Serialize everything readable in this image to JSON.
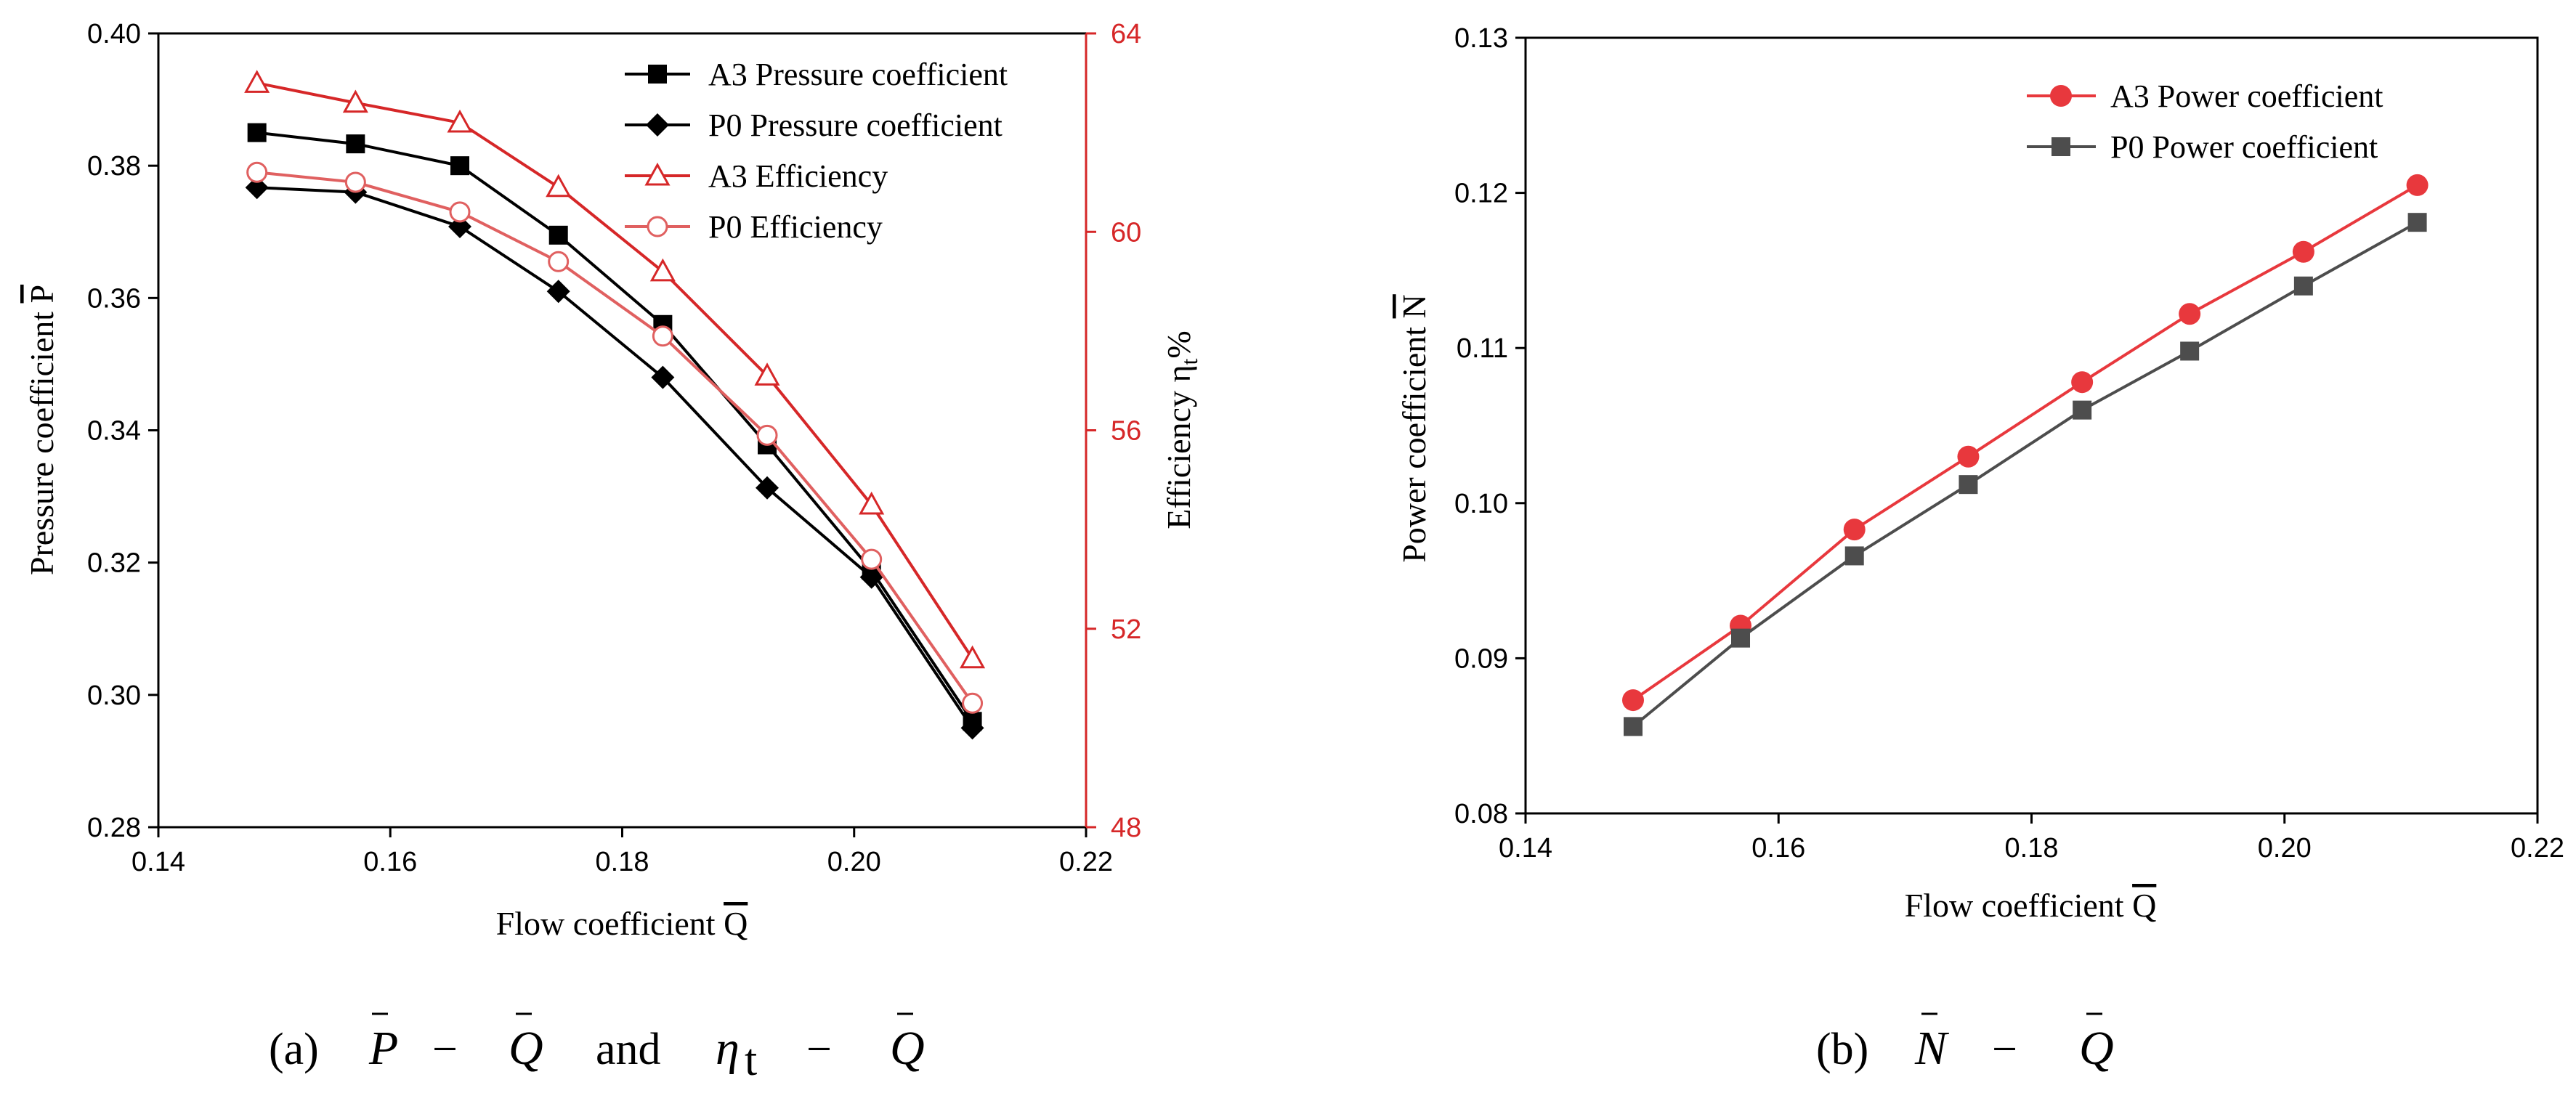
{
  "chart_data": [
    {
      "type": "line",
      "panel": "a",
      "caption": {
        "label": "(a)",
        "text": "P − Q and η",
        "terms": [
          "P",
          "−",
          "Q",
          "and",
          "η",
          "t",
          "−",
          "Q"
        ]
      },
      "xlabel": "Flow coefficient Q",
      "xlabel_text": "Flow coefficient ",
      "xlabel_var": "Q",
      "ylabel": "Pressure coefficient P",
      "ylabel_text": "Pressure coefficient ",
      "ylabel_var": "P",
      "y2label": "Efficiency ηt%",
      "y2label_text": "Efficiency η",
      "y2label_sub": "t",
      "y2label_suffix": "%",
      "xlim": [
        0.14,
        0.22
      ],
      "ylim": [
        0.28,
        0.4
      ],
      "y2lim": [
        48,
        64
      ],
      "xticks": [
        "0.14",
        "0.16",
        "0.18",
        "0.20",
        "0.22"
      ],
      "yticks": [
        "0.28",
        "0.30",
        "0.32",
        "0.34",
        "0.36",
        "0.38",
        "0.40"
      ],
      "y2ticks": [
        "48",
        "52",
        "56",
        "60",
        "64"
      ],
      "legend_position": "top-right",
      "x": [
        0.1485,
        0.157,
        0.166,
        0.1745,
        0.1835,
        0.1925,
        0.2015,
        0.2102
      ],
      "series": [
        {
          "name": "A3 Pressure coefficient",
          "axis": "left",
          "marker": "square",
          "color": "#000000",
          "values": [
            0.385,
            0.3833,
            0.38,
            0.3695,
            0.356,
            0.3378,
            0.3188,
            0.296
          ]
        },
        {
          "name": "P0 Pressure coefficient",
          "axis": "left",
          "marker": "diamond",
          "color": "#000000",
          "values": [
            0.3767,
            0.376,
            0.3708,
            0.361,
            0.348,
            0.3313,
            0.3178,
            0.295
          ]
        },
        {
          "name": "A3 Efficiency",
          "axis": "right",
          "marker": "triangle-open",
          "color": "#d62728",
          "values": [
            63.0,
            62.6,
            62.2,
            60.9,
            59.2,
            57.1,
            54.5,
            51.4
          ]
        },
        {
          "name": "P0 Efficiency",
          "axis": "right",
          "marker": "circle-open",
          "color": "#e06060",
          "values": [
            61.2,
            61.0,
            60.4,
            59.4,
            57.9,
            55.9,
            53.4,
            50.5
          ]
        }
      ]
    },
    {
      "type": "line",
      "panel": "b",
      "caption": {
        "label": "(b)",
        "terms": [
          "N",
          "−",
          "Q"
        ]
      },
      "xlabel": "Flow coefficient Q",
      "xlabel_text": "Flow coefficient ",
      "xlabel_var": "Q",
      "ylabel": "Power coefficient N",
      "ylabel_text": "Power coefficient ",
      "ylabel_var": "N",
      "xlim": [
        0.14,
        0.22
      ],
      "ylim": [
        0.08,
        0.13
      ],
      "xticks": [
        "0.14",
        "0.16",
        "0.18",
        "0.20",
        "0.22"
      ],
      "yticks": [
        "0.08",
        "0.09",
        "0.10",
        "0.11",
        "0.12",
        "0.13"
      ],
      "legend_position": "top-right",
      "x": [
        0.1485,
        0.157,
        0.166,
        0.175,
        0.184,
        0.1925,
        0.2015,
        0.2105
      ],
      "series": [
        {
          "name": "A3 Power coefficient",
          "marker": "circle",
          "color": "#e8383d",
          "values": [
            0.0873,
            0.0921,
            0.0983,
            0.103,
            0.1078,
            0.1122,
            0.1162,
            0.1205
          ]
        },
        {
          "name": "P0 Power coefficient",
          "marker": "square",
          "color": "#4d4d4d",
          "values": [
            0.0856,
            0.0913,
            0.0966,
            0.1012,
            0.106,
            0.1098,
            0.114,
            0.1181
          ]
        }
      ]
    }
  ]
}
